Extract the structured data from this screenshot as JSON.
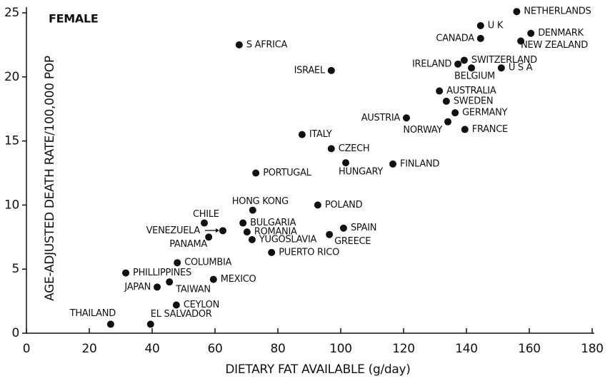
{
  "chart_data": {
    "type": "scatter",
    "annotation": "FEMALE",
    "xlabel": "DIETARY FAT AVAILABLE (g/day)",
    "ylabel": "AGE-ADJUSTED DEATH RATE/100,000 POP",
    "xlim": [
      0,
      180
    ],
    "ylim": [
      0,
      25
    ],
    "xticks": [
      0,
      20,
      40,
      60,
      80,
      100,
      120,
      140,
      160,
      180
    ],
    "yticks": [
      0,
      5,
      10,
      15,
      20,
      25
    ],
    "color": "#111111",
    "labels": [
      "NETHERLANDS",
      "U K",
      "DENMARK",
      "CANADA",
      "NEW ZEALAND",
      "S AFRICA",
      "SWITZERLAND",
      "IRELAND",
      "BELGIUM",
      "U S A",
      "ISRAEL",
      "AUSTRALIA",
      "SWEDEN",
      "GERMANY",
      "AUSTRIA",
      "NORWAY",
      "FRANCE",
      "ITALY",
      "CZECH",
      "FINLAND",
      "HUNGARY",
      "PORTUGAL",
      "HONG KONG",
      "POLAND",
      "CHILE",
      "BULGARIA",
      "VENEZUELA",
      "ROMANIA",
      "SPAIN",
      "GREECE",
      "PANAMA",
      "YUGOSLAVIA",
      "PUERTO RICO",
      "COLUMBIA",
      "PHILLIPPINES",
      "MEXICO",
      "TAIWAN",
      "JAPAN",
      "CEYLON",
      "THAILAND",
      "EL SALVADOR"
    ],
    "x": [
      156,
      144.5,
      160.5,
      144.5,
      157.3,
      67.7,
      139.3,
      137.3,
      141.6,
      151.1,
      97,
      131.4,
      133.6,
      136.4,
      120.9,
      134.1,
      139.5,
      87.7,
      97,
      116.6,
      101.6,
      73,
      72,
      92.7,
      56.6,
      68.9,
      62.5,
      70.2,
      100.9,
      96.4,
      58,
      71.8,
      78,
      48,
      31.6,
      59.5,
      45.5,
      41.6,
      47.7,
      26.8,
      39.5
    ],
    "y": [
      25.1,
      24.0,
      23.4,
      23.0,
      22.8,
      22.5,
      21.3,
      21.0,
      20.7,
      20.7,
      20.5,
      18.9,
      18.1,
      17.2,
      16.8,
      16.5,
      15.9,
      15.5,
      14.4,
      13.2,
      13.3,
      12.5,
      9.6,
      10.0,
      8.6,
      8.6,
      8.0,
      7.9,
      8.2,
      7.7,
      7.5,
      7.3,
      6.3,
      5.5,
      4.7,
      4.2,
      4.0,
      3.6,
      2.2,
      0.7,
      0.7
    ]
  }
}
